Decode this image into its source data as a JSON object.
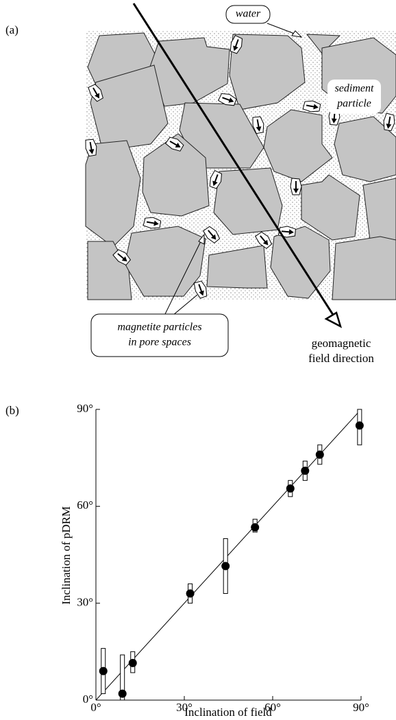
{
  "diagram": {
    "panel_label": "(a)",
    "water_label": "water",
    "sediment_label": [
      "sediment",
      "particle"
    ],
    "magnetite_label": [
      "magnetite particles",
      "in pore spaces"
    ],
    "field_label": [
      "geomagnetic",
      "field direction"
    ]
  },
  "chart_data": {
    "type": "scatter",
    "panel_label": "(b)",
    "x_label": "Inclination of field",
    "y_label": "Inclination of pDRM",
    "x": [
      2.5,
      9,
      12.5,
      32,
      44,
      54,
      66,
      71,
      76,
      89.5
    ],
    "values": [
      9,
      2,
      11.5,
      33,
      41.5,
      53.5,
      65.5,
      71,
      76,
      85
    ],
    "bar_low": [
      2,
      0,
      8.5,
      30,
      33,
      52,
      63,
      68,
      73,
      79
    ],
    "bar_high": [
      16,
      14,
      15,
      36,
      50,
      56,
      68,
      74,
      79,
      90
    ],
    "color": "#000000",
    "fit_line": {
      "x": [
        0,
        90
      ],
      "y": [
        0,
        90
      ]
    },
    "xlim": [
      0,
      90
    ],
    "ylim": [
      0,
      90
    ],
    "xticks": [
      {
        "value": 0,
        "label": "0°"
      },
      {
        "value": 30,
        "label": "30°"
      },
      {
        "value": 60,
        "label": "60°"
      },
      {
        "value": 90,
        "label": "90°"
      }
    ],
    "yticks": [
      {
        "value": 0,
        "label": "0°"
      },
      {
        "value": 30,
        "label": "30°"
      },
      {
        "value": 60,
        "label": "60°"
      },
      {
        "value": 90,
        "label": "90°"
      }
    ],
    "grid": false
  }
}
